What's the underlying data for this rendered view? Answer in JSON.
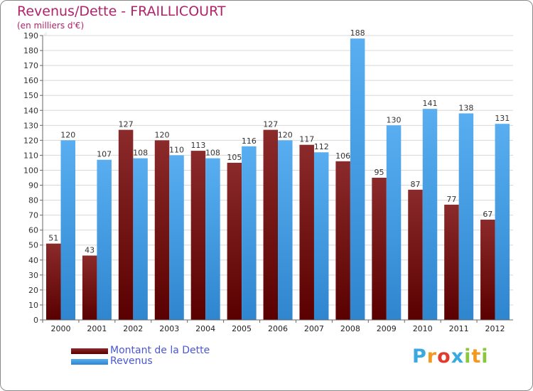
{
  "header": {
    "title": "Revenus/Dette - FRAILLICOURT",
    "subtitle": "(en milliers d'€)"
  },
  "logo": {
    "letters": [
      "P",
      "r",
      "o",
      "x",
      "i",
      "t",
      "i"
    ],
    "colors": [
      "#3aa9e0",
      "#f39a1e",
      "#e23b2e",
      "#3aa9e0",
      "#8cc63f",
      "#f39a1e",
      "#8cc63f"
    ]
  },
  "colors": {
    "dette": "#7a1515",
    "revenus": "#4a9ee6",
    "grid": "#d8d8d8",
    "wall": "#f0f0f0"
  },
  "chart_data": {
    "type": "bar",
    "title": "Revenus/Dette - FRAILLICOURT",
    "ylabel": "(en milliers d'€)",
    "xlabel": "",
    "ylim": [
      0,
      190
    ],
    "yticks": [
      0,
      10,
      20,
      30,
      40,
      50,
      60,
      70,
      80,
      90,
      100,
      110,
      120,
      130,
      140,
      150,
      160,
      170,
      180,
      190
    ],
    "categories": [
      "2000",
      "2001",
      "2002",
      "2003",
      "2004",
      "2005",
      "2006",
      "2007",
      "2008",
      "2009",
      "2010",
      "2011",
      "2012"
    ],
    "series": [
      {
        "name": "Montant de la Dette",
        "values": [
          51,
          43,
          127,
          120,
          113,
          105,
          127,
          117,
          106,
          95,
          87,
          77,
          67
        ]
      },
      {
        "name": "Revenus",
        "values": [
          120,
          107,
          108,
          110,
          108,
          116,
          120,
          112,
          188,
          130,
          141,
          138,
          131
        ]
      }
    ],
    "legend": "bottom-left",
    "grid": true
  }
}
